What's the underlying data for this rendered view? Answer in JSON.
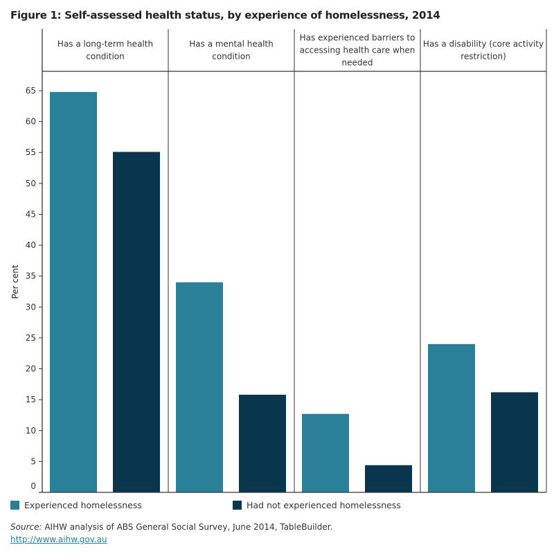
{
  "title": "Figure 1: Self-assessed health status, by experience of homelessness, 2014",
  "colors": {
    "experienced": "#2a7f99",
    "not_experienced": "#0a364d"
  },
  "chart_data": {
    "type": "bar",
    "categories": [
      "Has a long-term health condition",
      "Has a mental health condition",
      "Has experienced barriers to accessing health care when needed",
      "Has a disability (core activity restriction)"
    ],
    "series": [
      {
        "name": "Experienced homelessness",
        "values": [
          64.8,
          34.0,
          12.7,
          24.0
        ]
      },
      {
        "name": "Had not experienced homelessness",
        "values": [
          55.1,
          15.8,
          4.4,
          16.2
        ]
      }
    ],
    "ylabel": "Per cent",
    "ylim": [
      0,
      65
    ],
    "yticks": [
      0,
      5,
      10,
      15,
      20,
      25,
      30,
      35,
      40,
      45,
      50,
      55,
      60,
      65
    ],
    "grid": false,
    "legend": "bottom"
  },
  "source_label": "Source:",
  "source_text": " AIHW analysis of ABS General Social Survey, June 2014, TableBuilder.",
  "link": "http://www.aihw.gov.au"
}
